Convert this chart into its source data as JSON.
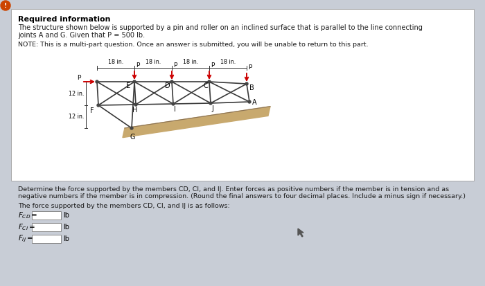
{
  "title": "Required information",
  "para1_line1": "The structure shown below is supported by a pin and roller on an inclined surface that is parallel to the line connecting",
  "para1_line2": "joints A and G. Given that P = 500 lb.",
  "note": "NOTE: This is a multi-part question. Once an answer is submitted, you will be unable to return to this part.",
  "dim_label": "18 in.",
  "dim_12": "12 in.",
  "question_line1": "Determine the force supported by the members CD, CI, and IJ. Enter forces as positive numbers if the member is in tension and as",
  "question_line2": "negative numbers if the member is in compression. (Round the final answers to four decimal places. Include a minus sign if necessary.)",
  "answer_text": "The force supported by the members CD, CI, and IJ is as follows:",
  "lb": "lb",
  "bg_color": "#c8cdd6",
  "box_bg": "#d4d8e0",
  "box_border": "#aaaaaa",
  "truss_color": "#3a3a3a",
  "load_color": "#cc0000",
  "ground_color": "#c8a96e",
  "ground_border": "#8b7355",
  "text_color": "#1a1a1a",
  "title_color": "#000000",
  "node_color": "#555555",
  "warning_color": "#cc4400"
}
